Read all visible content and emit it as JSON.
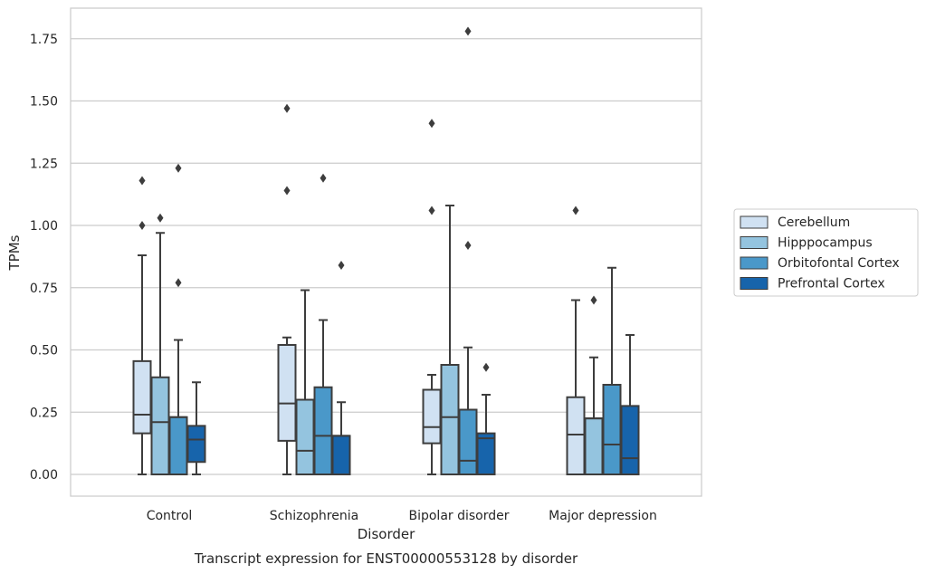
{
  "chart_data": {
    "type": "boxplot",
    "title": "Transcript expression for ENST00000553128 by disorder",
    "xlabel": "Disorder",
    "ylabel": "TPMs",
    "ylim": [
      -0.085,
      1.87
    ],
    "yticks": [
      0.0,
      0.25,
      0.5,
      0.75,
      1.0,
      1.25,
      1.5,
      1.75
    ],
    "ytick_labels": [
      "0.00",
      "0.25",
      "0.50",
      "0.75",
      "1.00",
      "1.25",
      "1.50",
      "1.75"
    ],
    "grid": true,
    "legend_position": "right",
    "categories": [
      "Control",
      "Schizophrenia",
      "Bipolar disorder",
      "Major depression"
    ],
    "series": [
      {
        "name": "Cerebellum",
        "color": "#d0e1f2",
        "boxes": [
          {
            "whislo": 0.0,
            "q1": 0.165,
            "med": 0.24,
            "q3": 0.455,
            "whishi": 0.88,
            "fliers": [
              1.0,
              1.18
            ]
          },
          {
            "whislo": 0.0,
            "q1": 0.135,
            "med": 0.285,
            "q3": 0.52,
            "whishi": 0.55,
            "fliers": [
              1.14,
              1.47
            ]
          },
          {
            "whislo": 0.0,
            "q1": 0.125,
            "med": 0.19,
            "q3": 0.34,
            "whishi": 0.4,
            "fliers": [
              1.06,
              1.41
            ]
          },
          {
            "whislo": 0.0,
            "q1": 0.0,
            "med": 0.16,
            "q3": 0.31,
            "whishi": 0.7,
            "fliers": [
              1.06
            ]
          }
        ]
      },
      {
        "name": "Hipppocampus",
        "color": "#94c4df",
        "boxes": [
          {
            "whislo": 0.0,
            "q1": 0.0,
            "med": 0.21,
            "q3": 0.39,
            "whishi": 0.97,
            "fliers": [
              1.03
            ]
          },
          {
            "whislo": 0.0,
            "q1": 0.0,
            "med": 0.095,
            "q3": 0.3,
            "whishi": 0.74,
            "fliers": []
          },
          {
            "whislo": 0.0,
            "q1": 0.0,
            "med": 0.23,
            "q3": 0.44,
            "whishi": 1.08,
            "fliers": []
          },
          {
            "whislo": 0.0,
            "q1": 0.0,
            "med": 0.225,
            "q3": 0.225,
            "whishi": 0.47,
            "fliers": [
              0.7
            ]
          }
        ]
      },
      {
        "name": "Orbitofontal Cortex",
        "color": "#4a98c9",
        "boxes": [
          {
            "whislo": 0.0,
            "q1": 0.0,
            "med": 0.23,
            "q3": 0.23,
            "whishi": 0.54,
            "fliers": [
              0.77,
              1.23
            ]
          },
          {
            "whislo": 0.0,
            "q1": 0.0,
            "med": 0.155,
            "q3": 0.35,
            "whishi": 0.62,
            "fliers": [
              1.19
            ]
          },
          {
            "whislo": 0.0,
            "q1": 0.0,
            "med": 0.055,
            "q3": 0.26,
            "whishi": 0.51,
            "fliers": [
              0.92,
              1.78
            ]
          },
          {
            "whislo": 0.0,
            "q1": 0.0,
            "med": 0.12,
            "q3": 0.36,
            "whishi": 0.83,
            "fliers": []
          }
        ]
      },
      {
        "name": "Prefrontal Cortex",
        "color": "#1764ab",
        "boxes": [
          {
            "whislo": 0.0,
            "q1": 0.05,
            "med": 0.14,
            "q3": 0.195,
            "whishi": 0.37,
            "fliers": []
          },
          {
            "whislo": 0.0,
            "q1": 0.0,
            "med": 0.155,
            "q3": 0.155,
            "whishi": 0.29,
            "fliers": [
              0.84
            ]
          },
          {
            "whislo": 0.0,
            "q1": 0.0,
            "med": 0.145,
            "q3": 0.165,
            "whishi": 0.32,
            "fliers": [
              0.43
            ]
          },
          {
            "whislo": 0.0,
            "q1": 0.0,
            "med": 0.065,
            "q3": 0.275,
            "whishi": 0.56,
            "fliers": []
          }
        ]
      }
    ]
  }
}
